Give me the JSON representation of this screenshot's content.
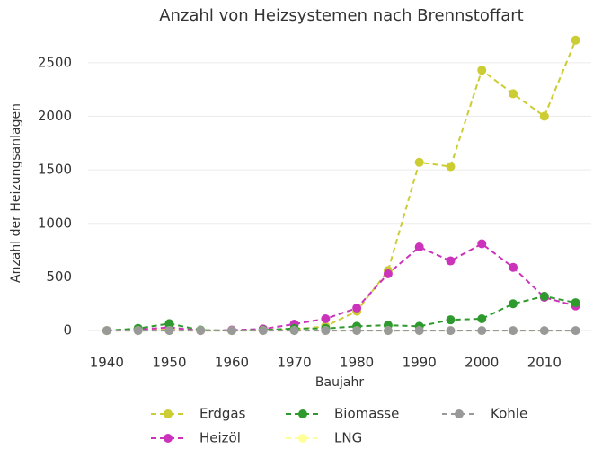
{
  "chart_data": {
    "type": "line",
    "title": "Anzahl von Heizsystemen nach Brennstoffart",
    "x_label": "Baujahr",
    "y_label": "Anzahl der Heizungsanlagen",
    "x": [
      1940,
      1945,
      1950,
      1955,
      1960,
      1965,
      1970,
      1975,
      1980,
      1985,
      1990,
      1995,
      2000,
      2005,
      2010,
      2015
    ],
    "series": [
      {
        "name": "Erdgas",
        "color": "#cccc33",
        "values": [
          0,
          5,
          10,
          0,
          0,
          5,
          10,
          40,
          180,
          560,
          1570,
          1530,
          2430,
          2210,
          2000,
          2710
        ]
      },
      {
        "name": "Heizöl",
        "color": "#cc33bb",
        "values": [
          0,
          10,
          30,
          0,
          5,
          15,
          60,
          110,
          210,
          530,
          780,
          650,
          810,
          590,
          310,
          230
        ]
      },
      {
        "name": "Biomasse",
        "color": "#2e9a2e",
        "values": [
          0,
          20,
          65,
          5,
          0,
          5,
          20,
          20,
          40,
          50,
          40,
          100,
          110,
          250,
          320,
          260
        ]
      },
      {
        "name": "LNG",
        "color": "#ffff99",
        "values": [
          0,
          0,
          0,
          0,
          0,
          0,
          0,
          0,
          0,
          0,
          0,
          0,
          0,
          0,
          0,
          0
        ]
      },
      {
        "name": "Kohle",
        "color": "#999999",
        "values": [
          0,
          0,
          0,
          0,
          0,
          0,
          0,
          0,
          0,
          0,
          0,
          0,
          0,
          0,
          0,
          0
        ]
      }
    ],
    "xlim": [
      1937,
      2017.5
    ],
    "xticks": [
      1940,
      1950,
      1960,
      1970,
      1980,
      1990,
      2000,
      2010
    ],
    "ylim": [
      -150,
      2750
    ],
    "yticks": [
      0,
      500,
      1000,
      1500,
      2000,
      2500
    ],
    "grid": true,
    "legend": "bottom"
  }
}
